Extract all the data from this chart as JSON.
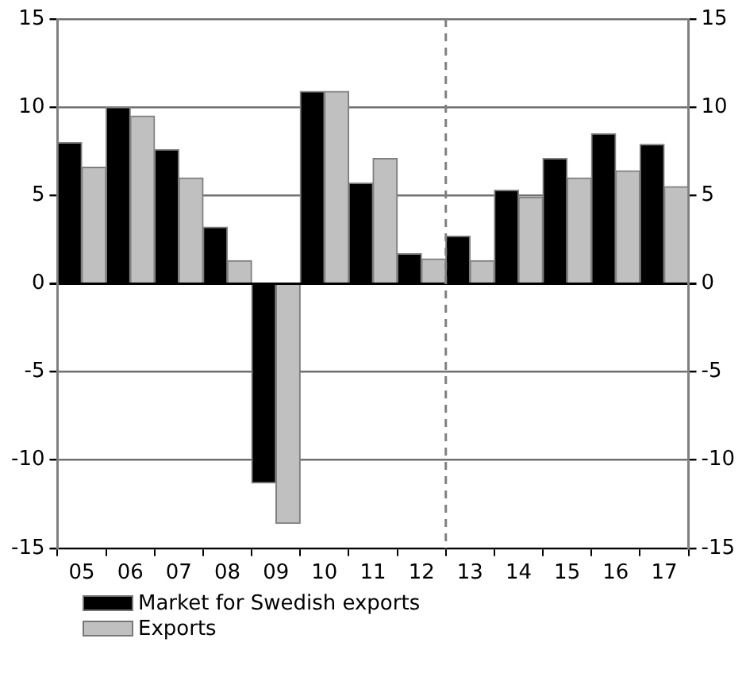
{
  "chart_data": {
    "type": "bar",
    "categories": [
      "05",
      "06",
      "07",
      "08",
      "09",
      "10",
      "11",
      "12",
      "13",
      "14",
      "15",
      "16",
      "17"
    ],
    "series": [
      {
        "name": "Market for Swedish exports",
        "color": "#000000",
        "values": [
          8.0,
          10.0,
          7.6,
          3.2,
          -11.3,
          10.9,
          5.7,
          1.7,
          2.7,
          5.3,
          7.1,
          8.5,
          7.9
        ]
      },
      {
        "name": "Exports",
        "color": "#c0c0c0",
        "values": [
          6.6,
          9.5,
          6.0,
          1.3,
          -13.6,
          10.9,
          7.1,
          1.4,
          1.3,
          4.9,
          6.0,
          6.4,
          5.5
        ]
      }
    ],
    "ylim": [
      -15,
      15
    ],
    "yticks": [
      -15,
      -10,
      -5,
      0,
      5,
      10,
      15
    ],
    "y2lim": [
      -15,
      15
    ],
    "y2ticks": [
      -15,
      -10,
      -5,
      0,
      5,
      10,
      15
    ],
    "grid": "y",
    "legend": "bottom left",
    "ref_lines": [
      {
        "axis": "x",
        "value": "13",
        "line_style": "dashed",
        "color": "#808080"
      }
    ]
  }
}
